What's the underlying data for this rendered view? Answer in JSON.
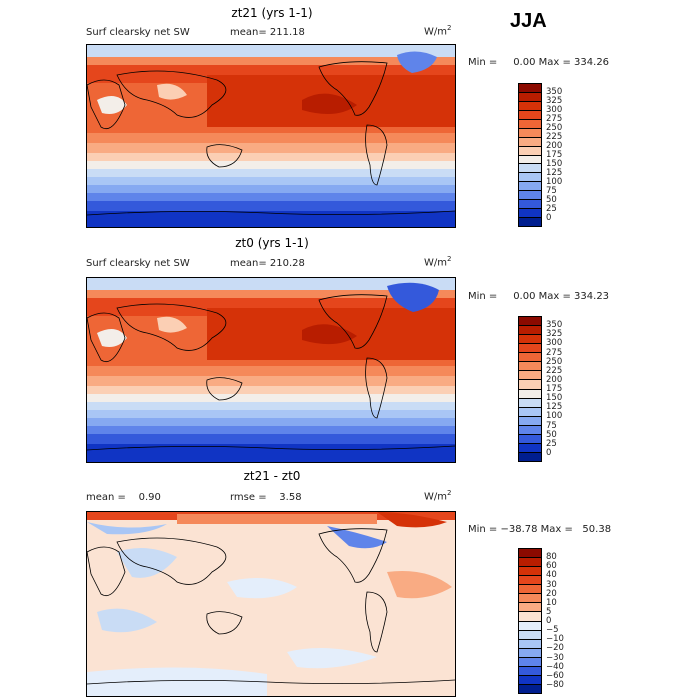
{
  "season": "JJA",
  "panels": [
    {
      "title": "zt21 (yrs 1-1)",
      "left_label": "Surf clearsky net SW",
      "mean_label": "mean= 211.18",
      "units": "W/m",
      "units_sup": "2",
      "minmax": "Min =     0.00 Max = 334.26",
      "colorbar": {
        "labels": [
          "350",
          "325",
          "300",
          "275",
          "250",
          "225",
          "200",
          "175",
          "150",
          "125",
          "100",
          "75",
          "50",
          "25",
          "0"
        ],
        "colors": [
          "#8b0a00",
          "#b81d00",
          "#d53208",
          "#e5461c",
          "#ee6636",
          "#f5895a",
          "#f9ab83",
          "#fbcfb4",
          "#f3eee9",
          "#c9dcf5",
          "#a9c6f5",
          "#86a9f1",
          "#5f84ea",
          "#3459db",
          "#1034c4",
          "#001e8f"
        ]
      }
    },
    {
      "title": "zt0 (yrs 1-1)",
      "left_label": "Surf clearsky net SW",
      "mean_label": "mean= 210.28",
      "units": "W/m",
      "units_sup": "2",
      "minmax": "Min =     0.00 Max = 334.23",
      "colorbar": {
        "labels": [
          "350",
          "325",
          "300",
          "275",
          "250",
          "225",
          "200",
          "175",
          "150",
          "125",
          "100",
          "75",
          "50",
          "25",
          "0"
        ],
        "colors": [
          "#8b0a00",
          "#b81d00",
          "#d53208",
          "#e5461c",
          "#ee6636",
          "#f5895a",
          "#f9ab83",
          "#fbcfb4",
          "#f3eee9",
          "#c9dcf5",
          "#a9c6f5",
          "#86a9f1",
          "#5f84ea",
          "#3459db",
          "#1034c4",
          "#001e8f"
        ]
      }
    },
    {
      "title": "zt21 - zt0",
      "left_label": "mean =    0.90",
      "mean_label": "rmse =    3.58",
      "units": "W/m",
      "units_sup": "2",
      "minmax": "Min = −38.78 Max =   50.38",
      "colorbar": {
        "labels": [
          "80",
          "60",
          "40",
          "30",
          "20",
          "10",
          "5",
          "0",
          "−5",
          "−10",
          "−20",
          "−30",
          "−40",
          "−60",
          "−80"
        ],
        "colors": [
          "#8b0a00",
          "#b81d00",
          "#d53208",
          "#e5461c",
          "#ee6636",
          "#f5895a",
          "#f9ab83",
          "#fbe3d3",
          "#e4eefb",
          "#c9dcf5",
          "#a9c6f5",
          "#86a9f1",
          "#5f84ea",
          "#3459db",
          "#1034c4",
          "#001e8f"
        ]
      }
    }
  ]
}
